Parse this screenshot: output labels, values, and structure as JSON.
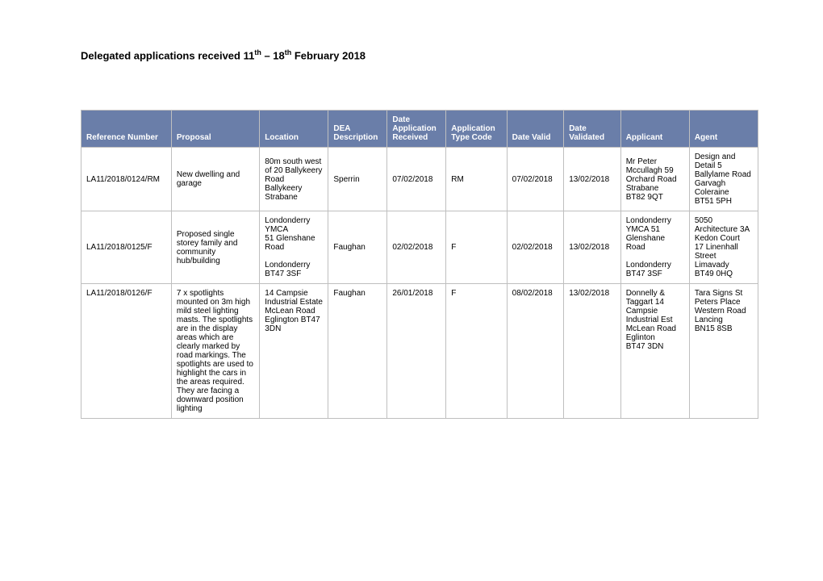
{
  "title_html": "Delegated applications received 11<sup>th</sup> – 18<sup>th</sup> February 2018",
  "header_bg": "#6a7ea9",
  "header_fg": "#ffffff",
  "border_color": "#bfbfbf",
  "columns": [
    "Reference Number",
    "Proposal",
    "Location",
    "DEA Description",
    "Date Application Received",
    "Application Type Code",
    "Date Valid",
    "Date Validated",
    "Applicant",
    "Agent"
  ],
  "rows": [
    {
      "valign": "middle",
      "cells": [
        "LA11/2018/0124/RM",
        "New dwelling and garage",
        "80m south west of 20 Ballykeery Road Ballykeery Strabane",
        "Sperrin",
        "07/02/2018",
        "RM",
        "07/02/2018",
        "13/02/2018",
        "Mr Peter Mccullagh 59 Orchard Road\n Strabane\n BT82 9QT",
        "Design and Detail 5 Ballylame Road\n Garvagh\n Coleraine\n BT51 5PH"
      ]
    },
    {
      "valign": "middle",
      "cells": [
        "LA11/2018/0125/F",
        "Proposed single storey family and community hub/building",
        "Londonderry YMCA\n 51 Glenshane Road\n\nLondonderry\n BT47 3SF",
        "Faughan",
        "02/02/2018",
        "F",
        "02/02/2018",
        "13/02/2018",
        "Londonderry YMCA   51 Glenshane Road\n\nLondonderry\n BT47 3SF",
        "5050 Architecture 3A Kedon Court\n17 Linenhall Street\n Limavady\n BT49 0HQ"
      ]
    },
    {
      "valign": "top",
      "cells": [
        "LA11/2018/0126/F",
        "7 x spotlights mounted on 3m high mild steel lighting masts. The spotlights are in the display areas which are clearly marked by road markings. The spotlights are used to highlight the cars in the areas required. They are facing a downward position lighting",
        "14 Campsie Industrial Estate McLean Road Eglington BT47 3DN",
        "Faughan",
        "26/01/2018",
        "F",
        "08/02/2018",
        "13/02/2018",
        "Donnelly & Taggart   14 Campsie Industrial Est\n McLean Road\n Eglinton\n BT47 3DN",
        "Tara Signs St Peters Place Western Road\n Lancing\n BN15 8SB"
      ]
    }
  ]
}
